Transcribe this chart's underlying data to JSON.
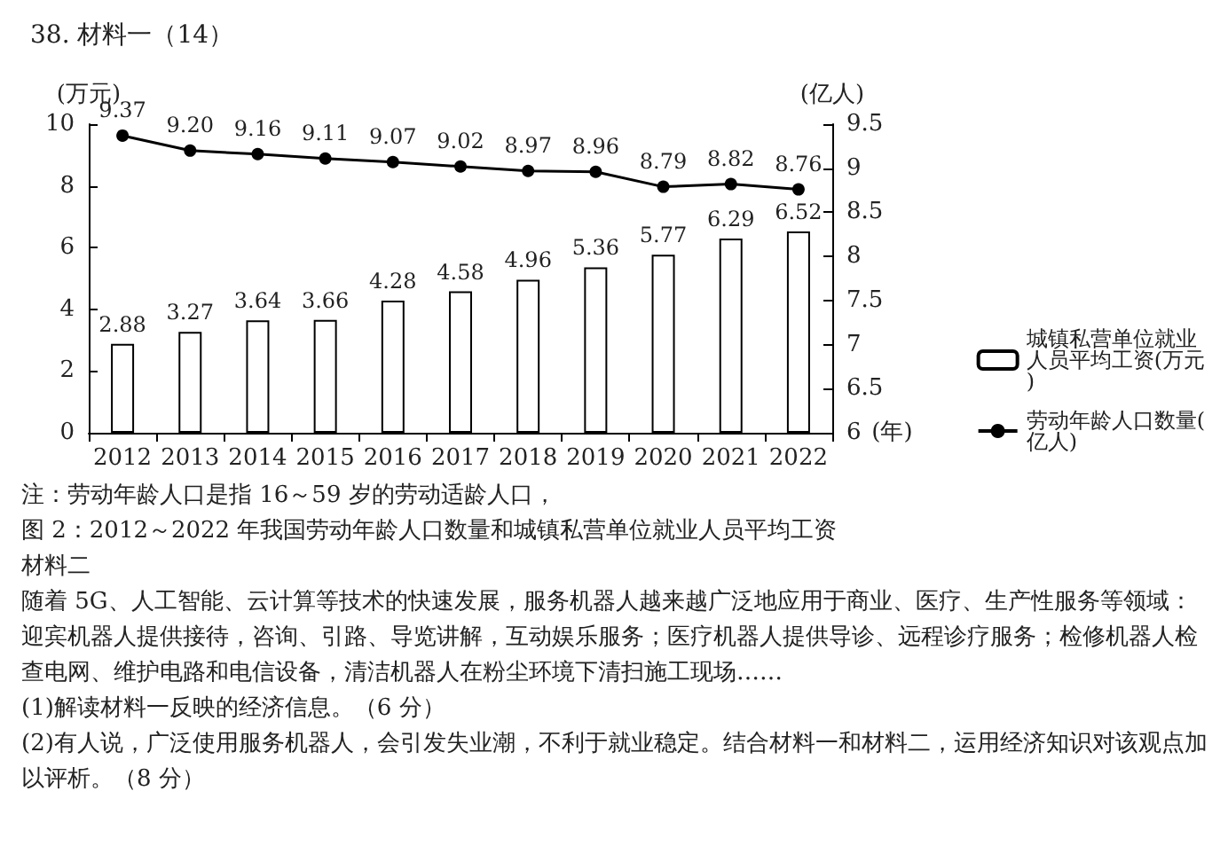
{
  "chart_data": {
    "type": "bar",
    "title": "38. 材料一（14）",
    "ylabel": "(万元)",
    "y2label": "(亿人)",
    "xlabel": "(年)",
    "categories": [
      "2012",
      "2013",
      "2014",
      "2015",
      "2016",
      "2017",
      "2018",
      "2019",
      "2020",
      "2021",
      "2022"
    ],
    "series": [
      {
        "name": "城镇私营单位就业人员平均工资(万元)",
        "color": "#ffffff",
        "values": [
          2.88,
          3.27,
          3.64,
          3.66,
          4.28,
          4.58,
          4.96,
          5.36,
          5.77,
          6.29,
          6.52
        ]
      },
      {
        "name": "劳动年龄人口数量(亿人)",
        "type": "line",
        "axis": "y2",
        "color": "#000000",
        "marker": "circle",
        "values": [
          9.37,
          9.2,
          9.16,
          9.11,
          9.07,
          9.02,
          8.97,
          8.96,
          8.79,
          8.82,
          8.76
        ],
        "value_labels": [
          "9.37",
          "9.20",
          "9.16",
          "9.11",
          "9.07",
          "9.02",
          "8.97",
          "8.96",
          "8.79",
          "8.82",
          "8.76"
        ]
      }
    ],
    "ylim": [
      0,
      10
    ],
    "yticks": [
      0,
      2,
      4,
      6,
      8,
      10
    ],
    "y2lim": [
      6,
      9.5
    ],
    "y2ticks": [
      6,
      {
        "value": 6.5,
        "label": "6.5"
      },
      7,
      {
        "value": 7.5,
        "label": "7.5"
      },
      8,
      {
        "value": 8.5,
        "label": "8.5"
      },
      9,
      {
        "value": 9.5,
        "label": "9.5"
      }
    ],
    "data_labels": true,
    "grid": false,
    "legend": "right",
    "annotations": [
      "注：劳动年龄人口是指 16～59 岁的劳动适龄人口，",
      "图 2：2012～2022 年我国劳动年龄人口数量和城镇私营单位就业人员平均工资",
      "材料二",
      "随着 5G、人工智能、云计算等技术的快速发展，服务机器人越来越广泛地应用于商业、医疗、生产性服务等领域：迎宾机器人提供接待，咨询、引路、导览讲解，互动娱乐服务；医疗机器人提供导诊、远程诊疗服务；检修机器人检查电网、维护电路和电信设备，清洁机器人在粉尘环境下清扫施工现场……",
      "(1)解读材料一反映的经济信息。（6 分）",
      "(2)有人说，广泛使用服务机器人，会引发失业潮，不利于就业稳定。结合材料一和材料二，运用经济知识对该观点加以评析。（8 分）"
    ]
  }
}
